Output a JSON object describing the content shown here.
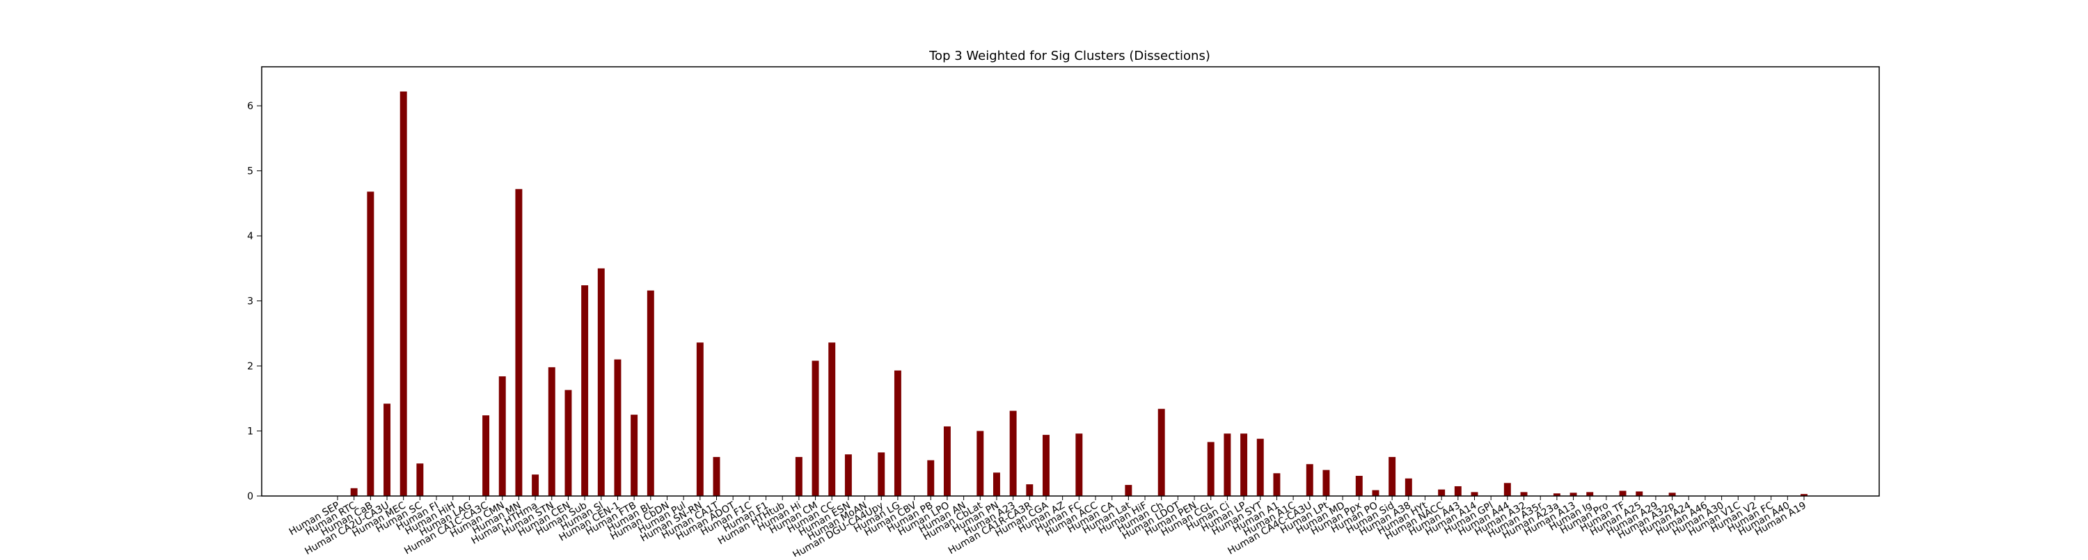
{
  "chart_data": {
    "type": "bar",
    "title": "Top 3 Weighted for Sig Clusters (Dissections)",
    "xlabel": "",
    "ylabel": "",
    "ylim": [
      0,
      6.6
    ],
    "yticks": [
      0,
      1,
      2,
      3,
      4,
      5,
      6
    ],
    "bar_color": "#7f0000",
    "grid": false,
    "legend": "none",
    "categories": [
      "Human SEP",
      "Human RTC",
      "Human CaB",
      "Human CA2U-CA3U",
      "Human MEC",
      "Human SC",
      "Human FI",
      "Human HiH",
      "Human LAG",
      "Human CA1C-CA3C",
      "Human CMN",
      "Human MN",
      "Human HTHma",
      "Human STN",
      "Human CEN",
      "Human Sub",
      "Human Sl",
      "Human CEN-1",
      "Human FTB",
      "Human BL",
      "Human CbDN",
      "Human Pul",
      "Human SN-RN",
      "Human CA1T",
      "Human ADOT",
      "Human F1C",
      "Human F1",
      "Human HTHtub",
      "Human Hi",
      "Human CM",
      "Human CC",
      "Human ESN",
      "Human MoAN",
      "Human DGU-CA4Upy",
      "Human LG",
      "Human CBV",
      "Human PB",
      "Human LPO",
      "Human AN",
      "Human CbLat",
      "Human PN",
      "Human A23",
      "Human CA1R-CA3R",
      "Human CGA",
      "Human AZ",
      "Human FC",
      "Human ACC",
      "Human CA",
      "Human Lat",
      "Human HiF",
      "Human Ch",
      "Human LDOT",
      "Human PEN",
      "Human CGL",
      "Human Ci",
      "Human LP",
      "Human SYT",
      "Human A1",
      "Human A1C",
      "Human CA4C-CA3U",
      "Human LPt",
      "Human MD",
      "Human Ppx",
      "Human PO",
      "Human Sid",
      "Human A38",
      "Human HYt",
      "Human NACC",
      "Human A43",
      "Human A14",
      "Human GPl",
      "Human A44",
      "Human A32",
      "Human A35r",
      "Human A23a",
      "Human A13",
      "Human Ig",
      "Human Pro",
      "Human TF",
      "Human A25",
      "Human A29",
      "Human A32p",
      "Human A24",
      "Human A46",
      "Human A30",
      "Human V1C",
      "Human V2",
      "Human FC",
      "Human A40",
      "Human A19"
    ],
    "values": [
      0,
      0.12,
      4.68,
      1.42,
      6.22,
      0.5,
      0,
      0,
      0,
      1.24,
      1.84,
      4.72,
      0.33,
      1.98,
      1.63,
      3.24,
      3.5,
      2.1,
      1.25,
      3.16,
      0,
      0,
      2.36,
      0.6,
      0,
      0,
      0,
      0,
      0.6,
      2.08,
      2.36,
      0.64,
      0,
      0.67,
      1.93,
      0,
      0.55,
      1.07,
      0,
      1.0,
      0.36,
      1.31,
      0.18,
      0.94,
      0,
      0.96,
      0,
      0,
      0.17,
      0,
      1.34,
      0,
      0,
      0.83,
      0.96,
      0.96,
      0.88,
      0.35,
      0,
      0.49,
      0.4,
      0,
      0.31,
      0.09,
      0.6,
      0.27,
      0,
      0.1,
      0.15,
      0.06,
      0,
      0.2,
      0.06,
      0,
      0.04,
      0.05,
      0.06,
      0,
      0.08,
      0.07,
      0,
      0.05,
      0,
      0,
      0,
      0,
      0,
      0,
      0,
      0.03
    ]
  }
}
